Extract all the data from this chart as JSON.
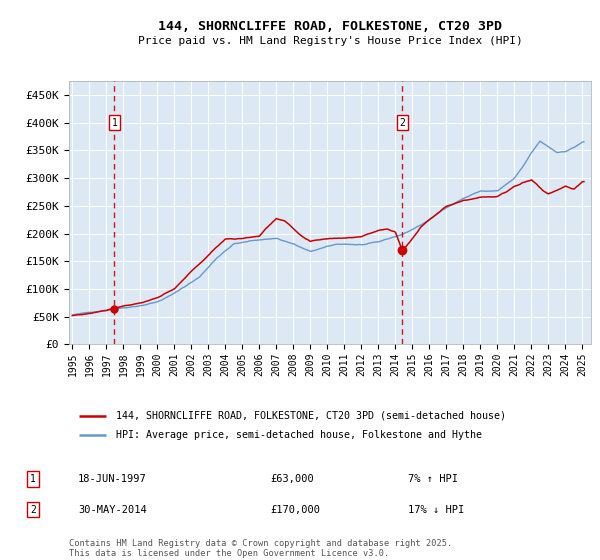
{
  "title": "144, SHORNCLIFFE ROAD, FOLKESTONE, CT20 3PD",
  "subtitle": "Price paid vs. HM Land Registry's House Price Index (HPI)",
  "red_label": "144, SHORNCLIFFE ROAD, FOLKESTONE, CT20 3PD (semi-detached house)",
  "blue_label": "HPI: Average price, semi-detached house, Folkestone and Hythe",
  "annotation1": {
    "num": "1",
    "date": "18-JUN-1997",
    "price": "£63,000",
    "change": "7% ↑ HPI"
  },
  "annotation2": {
    "num": "2",
    "date": "30-MAY-2014",
    "price": "£170,000",
    "change": "17% ↓ HPI"
  },
  "footer": "Contains HM Land Registry data © Crown copyright and database right 2025.\nThis data is licensed under the Open Government Licence v3.0.",
  "ylim": [
    0,
    475000
  ],
  "yticks": [
    0,
    50000,
    100000,
    150000,
    200000,
    250000,
    300000,
    350000,
    400000,
    450000
  ],
  "ytick_labels": [
    "£0",
    "£50K",
    "£100K",
    "£150K",
    "£200K",
    "£250K",
    "£300K",
    "£350K",
    "£400K",
    "£450K"
  ],
  "xtick_years": [
    1995,
    1996,
    1997,
    1998,
    1999,
    2000,
    2001,
    2002,
    2003,
    2004,
    2005,
    2006,
    2007,
    2008,
    2009,
    2010,
    2011,
    2012,
    2013,
    2014,
    2015,
    2016,
    2017,
    2018,
    2019,
    2020,
    2021,
    2022,
    2023,
    2024,
    2025
  ],
  "red_color": "#cc0000",
  "blue_color": "#6699cc",
  "bg_color": "#dce9f5",
  "grid_color": "#ffffff",
  "dashed_color": "#cc0000",
  "marker1_x": 1997.47,
  "marker1_y": 63000,
  "marker2_x": 2014.41,
  "marker2_y": 170000,
  "vline1_x": 1997.47,
  "vline2_x": 2014.41,
  "xlim_left": 1994.8,
  "xlim_right": 2025.5
}
